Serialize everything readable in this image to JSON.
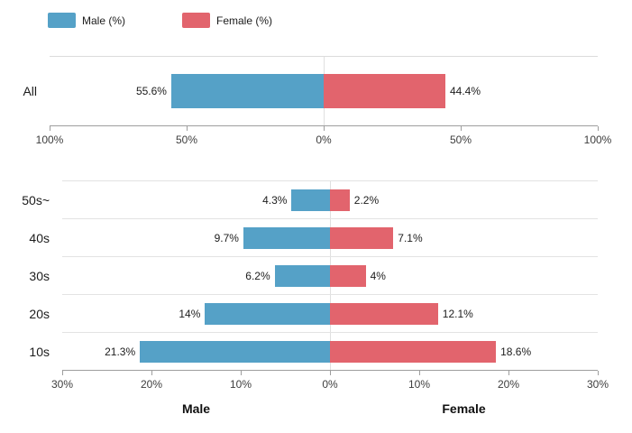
{
  "colors": {
    "male": "#55A1C7",
    "female": "#E2646D",
    "axis": "#9E9E9E",
    "separator": "#E3E3E3",
    "zero_line": "#E0E0E0",
    "text": "#1C1C1C",
    "tick_text": "#3D3D3D"
  },
  "legend": {
    "items": [
      {
        "label": "Male (%)",
        "color_key": "male"
      },
      {
        "label": "Female (%)",
        "color_key": "female"
      }
    ]
  },
  "chart_data": [
    {
      "type": "bar",
      "variant": "diverging-horizontal",
      "title": "",
      "categories": [
        "All"
      ],
      "series": [
        {
          "name": "Male (%)",
          "side": "left",
          "color_key": "male",
          "values": [
            55.6
          ],
          "labels": [
            "55.6%"
          ]
        },
        {
          "name": "Female (%)",
          "side": "right",
          "color_key": "female",
          "values": [
            44.4
          ],
          "labels": [
            "44.4%"
          ]
        }
      ],
      "axis": {
        "max_each_side": 100,
        "tick_values": [
          -100,
          -50,
          0,
          50,
          100
        ],
        "tick_labels": [
          "100%",
          "50%",
          "0%",
          "50%",
          "100%"
        ]
      },
      "grid": {
        "zero_line": true,
        "row_separators": false
      }
    },
    {
      "type": "bar",
      "variant": "diverging-horizontal",
      "title": "",
      "categories": [
        "50s~",
        "40s",
        "30s",
        "20s",
        "10s"
      ],
      "series": [
        {
          "name": "Male (%)",
          "side": "left",
          "color_key": "male",
          "values": [
            4.3,
            9.7,
            6.2,
            14,
            21.3
          ],
          "labels": [
            "4.3%",
            "9.7%",
            "6.2%",
            "14%",
            "21.3%"
          ]
        },
        {
          "name": "Female (%)",
          "side": "right",
          "color_key": "female",
          "values": [
            2.2,
            7.1,
            4,
            12.1,
            18.6
          ],
          "labels": [
            "2.2%",
            "7.1%",
            "4%",
            "12.1%",
            "18.6%"
          ]
        }
      ],
      "axis": {
        "max_each_side": 30,
        "tick_values": [
          -30,
          -20,
          -10,
          0,
          10,
          20,
          30
        ],
        "tick_labels": [
          "30%",
          "20%",
          "10%",
          "0%",
          "10%",
          "20%",
          "30%"
        ],
        "captions": {
          "left": "Male",
          "right": "Female"
        }
      },
      "grid": {
        "zero_line": true,
        "row_separators": true
      }
    }
  ]
}
